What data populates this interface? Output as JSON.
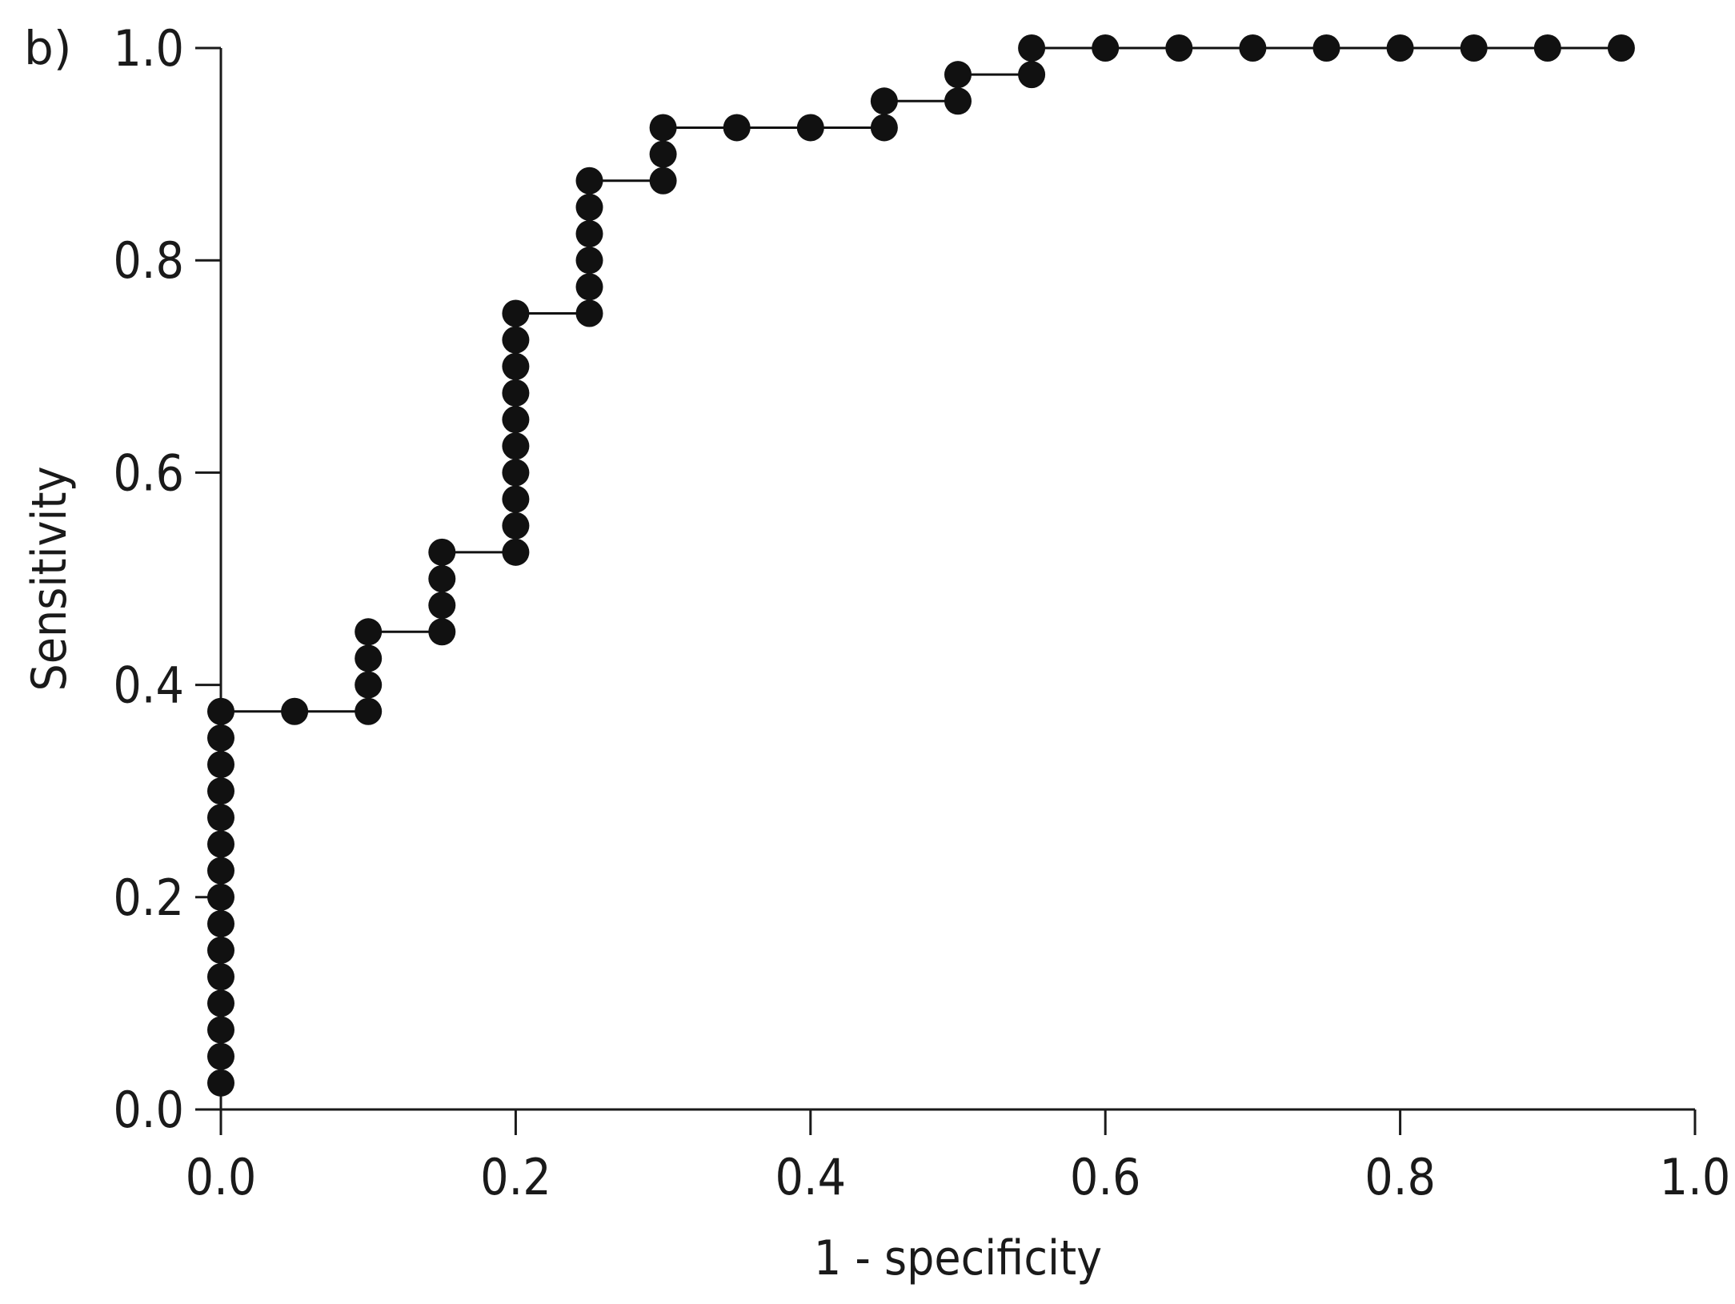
{
  "panel_label": "b)",
  "chart_data": {
    "type": "line",
    "step_plot": true,
    "markers": "filled-circle",
    "xlabel": "1 - specificity",
    "ylabel": "Sensitivity",
    "xlim": [
      0.0,
      1.0
    ],
    "ylim": [
      0.0,
      1.0
    ],
    "x_ticks": [
      "0.0",
      "0.2",
      "0.4",
      "0.6",
      "0.8",
      "1.0"
    ],
    "y_ticks": [
      "0.0",
      "0.2",
      "0.4",
      "0.6",
      "0.8",
      "1.0"
    ],
    "grid": false,
    "color": "#111111",
    "series": [
      {
        "x": [
          0.0,
          0.0,
          0.0,
          0.0,
          0.0,
          0.0,
          0.0,
          0.0,
          0.0,
          0.0,
          0.0,
          0.0,
          0.0,
          0.0,
          0.0,
          0.05,
          0.1,
          0.1,
          0.1,
          0.1,
          0.15,
          0.15,
          0.15,
          0.15,
          0.2,
          0.2,
          0.2,
          0.2,
          0.2,
          0.2,
          0.2,
          0.2,
          0.2,
          0.2,
          0.25,
          0.25,
          0.25,
          0.25,
          0.25,
          0.25,
          0.3,
          0.3,
          0.3,
          0.35,
          0.4,
          0.45,
          0.45,
          0.5,
          0.5,
          0.55,
          0.55,
          0.6,
          0.65,
          0.7,
          0.75,
          0.8,
          0.85,
          0.9,
          0.95
        ],
        "y": [
          0.025,
          0.05,
          0.075,
          0.1,
          0.125,
          0.15,
          0.175,
          0.2,
          0.225,
          0.25,
          0.275,
          0.3,
          0.325,
          0.35,
          0.375,
          0.375,
          0.375,
          0.4,
          0.425,
          0.45,
          0.45,
          0.475,
          0.5,
          0.525,
          0.525,
          0.55,
          0.575,
          0.6,
          0.625,
          0.65,
          0.675,
          0.7,
          0.725,
          0.75,
          0.75,
          0.775,
          0.8,
          0.825,
          0.85,
          0.875,
          0.875,
          0.9,
          0.925,
          0.925,
          0.925,
          0.925,
          0.95,
          0.95,
          0.975,
          0.975,
          1.0,
          1.0,
          1.0,
          1.0,
          1.0,
          1.0,
          1.0,
          1.0,
          1.0
        ]
      }
    ]
  }
}
